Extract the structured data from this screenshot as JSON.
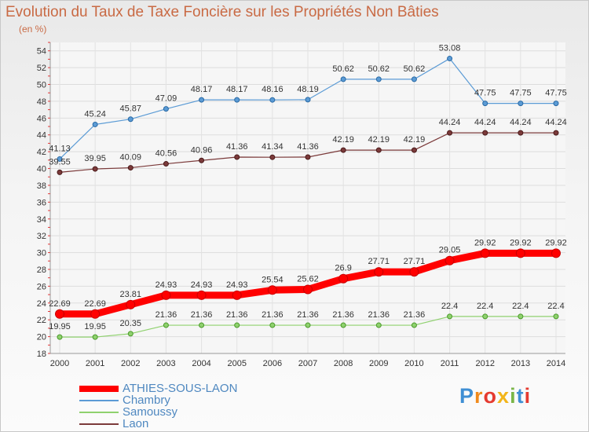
{
  "chart_data": {
    "type": "line",
    "title": "Evolution du Taux de Taxe Foncière sur les Propriétés Non Bâties",
    "unit": "(en %)",
    "categories": [
      "2000",
      "2001",
      "2002",
      "2003",
      "2004",
      "2005",
      "2006",
      "2007",
      "2008",
      "2009",
      "2010",
      "2011",
      "2012",
      "2013",
      "2014"
    ],
    "ylim": [
      18,
      55
    ],
    "yticks": [
      "18",
      "20",
      "22",
      "24",
      "26",
      "28",
      "30",
      "32",
      "34",
      "36",
      "38",
      "40",
      "42",
      "44",
      "46",
      "48",
      "50",
      "52",
      "54"
    ],
    "grid": true,
    "legend_position": "bottom-left",
    "series": [
      {
        "name": "ATHIES-SOUS-LAON",
        "color": "#ff0000",
        "values": [
          22.69,
          22.69,
          23.81,
          24.93,
          24.93,
          24.93,
          25.54,
          25.62,
          26.9,
          27.71,
          27.71,
          29.05,
          29.92,
          29.92,
          29.92
        ],
        "labels": [
          "22.69",
          "22.69",
          "23.81",
          "24.93",
          "24.93",
          "24.93",
          "25.54",
          "25.62",
          "26.9",
          "27.71",
          "27.71",
          "29.05",
          "29.92",
          "29.92",
          "29.92"
        ]
      },
      {
        "name": "Chambry",
        "color": "#5b9bd5",
        "values": [
          41.13,
          45.24,
          45.87,
          47.09,
          48.17,
          48.17,
          48.16,
          48.19,
          50.62,
          50.62,
          50.62,
          53.08,
          47.75,
          47.75,
          47.75
        ],
        "labels": [
          "41.13",
          "45.24",
          "45.87",
          "47.09",
          "48.17",
          "48.17",
          "48.16",
          "48.19",
          "50.62",
          "50.62",
          "50.62",
          "53.08",
          "47.75",
          "47.75",
          "47.75"
        ]
      },
      {
        "name": "Samoussy",
        "color": "#8fd16e",
        "values": [
          19.95,
          19.95,
          20.35,
          21.36,
          21.36,
          21.36,
          21.36,
          21.36,
          21.36,
          21.36,
          21.36,
          22.4,
          22.4,
          22.4,
          22.4
        ],
        "labels": [
          "19.95",
          "19.95",
          "20.35",
          "21.36",
          "21.36",
          "21.36",
          "21.36",
          "21.36",
          "21.36",
          "21.36",
          "21.36",
          "22.4",
          "22.4",
          "22.4",
          "22.4"
        ]
      },
      {
        "name": "Laon",
        "color": "#7b3a3a",
        "values": [
          39.55,
          39.95,
          40.09,
          40.56,
          40.96,
          41.36,
          41.34,
          41.36,
          42.19,
          42.19,
          42.19,
          44.24,
          44.24,
          44.24,
          44.24
        ],
        "labels": [
          "39.55",
          "39.95",
          "40.09",
          "40.56",
          "40.96",
          "41.36",
          "41.34",
          "41.36",
          "42.19",
          "42.19",
          "42.19",
          "44.24",
          "44.24",
          "44.24",
          "44.24"
        ]
      }
    ]
  },
  "brand": {
    "text": "Proxiti",
    "letters": [
      {
        "char": "P",
        "color": "#3f8fd4"
      },
      {
        "char": "r",
        "color": "#f08a1c"
      },
      {
        "char": "o",
        "color": "#e53a30"
      },
      {
        "char": "x",
        "color": "#f2b51a"
      },
      {
        "char": "i",
        "color": "#7ab648"
      },
      {
        "char": "t",
        "color": "#3f8fd4"
      },
      {
        "char": "i",
        "color": "#e53a30"
      }
    ]
  }
}
